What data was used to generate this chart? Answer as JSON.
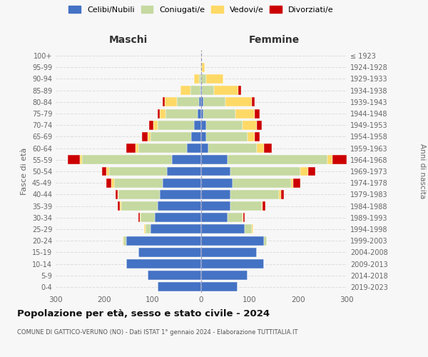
{
  "age_groups": [
    "0-4",
    "5-9",
    "10-14",
    "15-19",
    "20-24",
    "25-29",
    "30-34",
    "35-39",
    "40-44",
    "45-49",
    "50-54",
    "55-59",
    "60-64",
    "65-69",
    "70-74",
    "75-79",
    "80-84",
    "85-89",
    "90-94",
    "95-99",
    "100+"
  ],
  "birth_years": [
    "2019-2023",
    "2014-2018",
    "2009-2013",
    "2004-2008",
    "1999-2003",
    "1994-1998",
    "1989-1993",
    "1984-1988",
    "1979-1983",
    "1974-1978",
    "1969-1973",
    "1964-1968",
    "1959-1963",
    "1954-1958",
    "1949-1953",
    "1944-1948",
    "1939-1943",
    "1934-1938",
    "1929-1933",
    "1924-1928",
    "≤ 1923"
  ],
  "colors": {
    "celibe": "#4472C4",
    "coniugato": "#c5d9a0",
    "vedovo": "#FFD966",
    "divorziato": "#CC0000"
  },
  "maschi": {
    "celibe": [
      90,
      110,
      155,
      130,
      155,
      105,
      95,
      90,
      85,
      80,
      70,
      60,
      30,
      20,
      15,
      8,
      5,
      2,
      0,
      0,
      0
    ],
    "coniugato": [
      0,
      0,
      0,
      0,
      5,
      10,
      30,
      75,
      85,
      100,
      120,
      185,
      100,
      85,
      75,
      65,
      45,
      20,
      5,
      0,
      0
    ],
    "vedovo": [
      0,
      0,
      0,
      0,
      2,
      2,
      2,
      2,
      2,
      5,
      5,
      5,
      5,
      5,
      8,
      12,
      25,
      20,
      10,
      2,
      0
    ],
    "divorziato": [
      0,
      0,
      0,
      0,
      0,
      0,
      2,
      5,
      5,
      10,
      10,
      25,
      20,
      12,
      10,
      5,
      5,
      0,
      0,
      0,
      0
    ]
  },
  "femmine": {
    "celibe": [
      75,
      95,
      130,
      115,
      130,
      90,
      55,
      60,
      60,
      65,
      60,
      55,
      15,
      10,
      10,
      5,
      5,
      2,
      0,
      0,
      0
    ],
    "coniugato": [
      0,
      0,
      0,
      0,
      5,
      15,
      30,
      65,
      100,
      120,
      145,
      205,
      100,
      85,
      75,
      65,
      45,
      25,
      10,
      2,
      0
    ],
    "vedovo": [
      0,
      0,
      0,
      0,
      0,
      2,
      2,
      2,
      5,
      5,
      15,
      10,
      15,
      15,
      30,
      40,
      55,
      50,
      35,
      5,
      2
    ],
    "divorziato": [
      0,
      0,
      0,
      0,
      0,
      0,
      2,
      5,
      5,
      15,
      15,
      30,
      15,
      10,
      10,
      10,
      5,
      5,
      0,
      0,
      0
    ]
  },
  "title": "Popolazione per età, sesso e stato civile - 2024",
  "subtitle": "COMUNE DI GATTICO-VERUNO (NO) - Dati ISTAT 1° gennaio 2024 - Elaborazione TUTTITALIA.IT",
  "xlabel_left": "Maschi",
  "xlabel_right": "Femmine",
  "ylabel_left": "Fasce di età",
  "ylabel_right": "Anni di nascita",
  "xlim": 300,
  "legend_labels": [
    "Celibi/Nubili",
    "Coniugati/e",
    "Vedovi/e",
    "Divorziati/e"
  ],
  "background_color": "#f7f7f7",
  "grid_color": "#dddddd"
}
